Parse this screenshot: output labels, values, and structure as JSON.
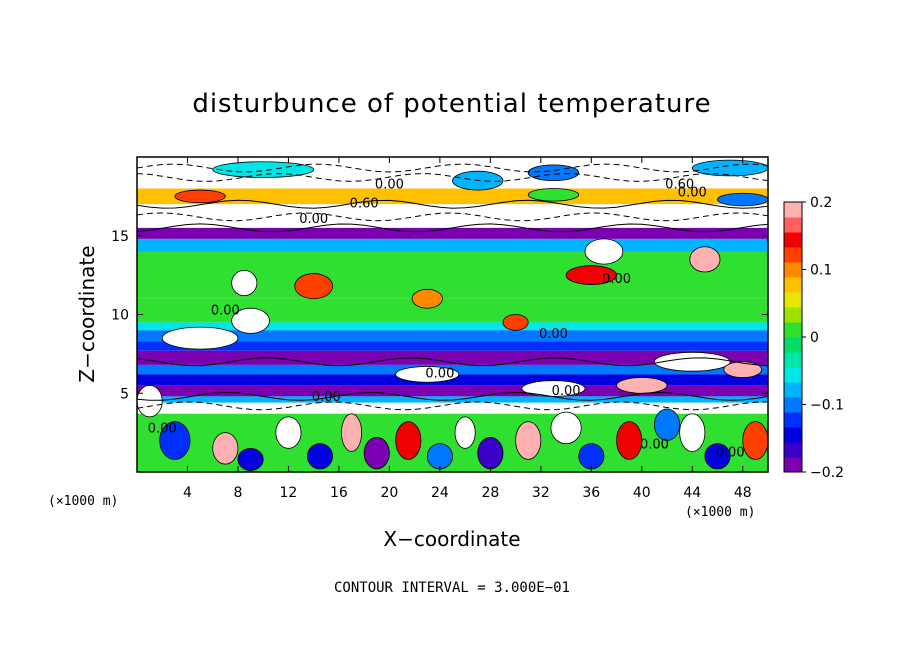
{
  "chart_data": {
    "type": "heatmap",
    "title": "disturbunce of potential temperature",
    "xlabel": "X−coordinate",
    "ylabel": "Z−coordinate",
    "x_unit": "(×1000 m)",
    "y_unit": "(×1000 m)",
    "xlim": [
      0,
      50
    ],
    "ylim": [
      0,
      20
    ],
    "x_ticks": [
      "4",
      "8",
      "12",
      "16",
      "20",
      "24",
      "28",
      "32",
      "36",
      "40",
      "44",
      "48"
    ],
    "x_tick_values": [
      4,
      8,
      12,
      16,
      20,
      24,
      28,
      32,
      36,
      40,
      44,
      48
    ],
    "y_ticks": [
      "5",
      "10",
      "15"
    ],
    "y_tick_values": [
      5,
      10,
      15
    ],
    "colorbar": {
      "ticks": [
        "0.2",
        "0.1",
        "0",
        "−0.1",
        "−0.2"
      ],
      "tick_values": [
        0.2,
        0.1,
        0,
        -0.1,
        -0.2
      ],
      "range": [
        -0.2,
        0.2
      ],
      "colors": [
        "#7a00b0",
        "#3a00c8",
        "#0000e0",
        "#0030ff",
        "#0078ff",
        "#00b4ff",
        "#00e6e6",
        "#00e6aa",
        "#00dc64",
        "#30e030",
        "#9ee000",
        "#e6e600",
        "#ffc000",
        "#ff8a00",
        "#ff4000",
        "#f00000",
        "#ff6060",
        "#ffb0b0"
      ]
    },
    "contour_interval": "CONTOUR INTERVAL = 3.000E−01",
    "contour_labels": [
      {
        "text": "0.00",
        "x": 20,
        "y": 18.0
      },
      {
        "text": "0.60",
        "x": 18,
        "y": 16.8
      },
      {
        "text": "0.00",
        "x": 14,
        "y": 15.8
      },
      {
        "text": "0.60",
        "x": 43,
        "y": 18.0
      },
      {
        "text": "0.00",
        "x": 44,
        "y": 17.5
      },
      {
        "text": "0.00",
        "x": 38,
        "y": 12.0
      },
      {
        "text": "0.00",
        "x": 7,
        "y": 10.0
      },
      {
        "text": "0.00",
        "x": 33,
        "y": 8.5
      },
      {
        "text": "0.00",
        "x": 24,
        "y": 6.0
      },
      {
        "text": "0.00",
        "x": 15,
        "y": 4.5
      },
      {
        "text": "0.00",
        "x": 34,
        "y": 4.9
      },
      {
        "text": "0.00",
        "x": 2,
        "y": 2.5
      },
      {
        "text": "0.00",
        "x": 41,
        "y": 1.5
      },
      {
        "text": "0.00",
        "x": 47,
        "y": 1.0
      }
    ],
    "bands": [
      {
        "z0": 18.0,
        "z1": 20.0,
        "value": 0.25
      },
      {
        "z0": 17.0,
        "z1": 18.0,
        "value": 0.08
      },
      {
        "z0": 15.5,
        "z1": 17.0,
        "value": 0.24
      },
      {
        "z0": 14.8,
        "z1": 15.5,
        "value": -0.2
      },
      {
        "z0": 14.0,
        "z1": 14.8,
        "value": -0.07
      },
      {
        "z0": 11.0,
        "z1": 14.0,
        "value": 0.02
      },
      {
        "z0": 9.5,
        "z1": 11.0,
        "value": 0.0
      },
      {
        "z0": 9.0,
        "z1": 9.5,
        "value": -0.06
      },
      {
        "z0": 8.3,
        "z1": 9.0,
        "value": -0.09
      },
      {
        "z0": 7.7,
        "z1": 8.3,
        "value": -0.13
      },
      {
        "z0": 6.8,
        "z1": 7.7,
        "value": -0.18
      },
      {
        "z0": 6.2,
        "z1": 6.8,
        "value": -0.11
      },
      {
        "z0": 5.5,
        "z1": 6.2,
        "value": -0.14
      },
      {
        "z0": 4.8,
        "z1": 5.5,
        "value": -0.2
      },
      {
        "z0": 4.4,
        "z1": 4.8,
        "value": -0.08
      },
      {
        "z0": 3.7,
        "z1": 4.4,
        "value": 0.25
      },
      {
        "z0": 0.0,
        "z1": 3.7,
        "value": 0.0
      }
    ],
    "blobs": [
      {
        "x": 10,
        "z": 19.2,
        "rx": 4,
        "rz": 0.5,
        "value": -0.05
      },
      {
        "x": 27,
        "z": 18.5,
        "rx": 2,
        "rz": 0.6,
        "value": -0.08
      },
      {
        "x": 33,
        "z": 19.0,
        "rx": 2,
        "rz": 0.5,
        "value": -0.1
      },
      {
        "x": 47,
        "z": 19.3,
        "rx": 3,
        "rz": 0.5,
        "value": -0.07
      },
      {
        "x": 5,
        "z": 17.5,
        "rx": 2,
        "rz": 0.4,
        "value": 0.12
      },
      {
        "x": 33,
        "z": 17.6,
        "rx": 2,
        "rz": 0.4,
        "value": 0.02
      },
      {
        "x": 48,
        "z": 17.3,
        "rx": 2,
        "rz": 0.4,
        "value": -0.1
      },
      {
        "x": 37,
        "z": 14.0,
        "rx": 1.5,
        "rz": 0.8,
        "value": 0.25
      },
      {
        "x": 45,
        "z": 13.5,
        "rx": 1.2,
        "rz": 0.8,
        "value": 0.2
      },
      {
        "x": 36,
        "z": 12.5,
        "rx": 2.0,
        "rz": 0.6,
        "value": 0.15
      },
      {
        "x": 14,
        "z": 11.8,
        "rx": 1.5,
        "rz": 0.8,
        "value": 0.12
      },
      {
        "x": 23,
        "z": 11.0,
        "rx": 1.2,
        "rz": 0.6,
        "value": 0.1
      },
      {
        "x": 8.5,
        "z": 12.0,
        "rx": 1.0,
        "rz": 0.8,
        "value": 0.25
      },
      {
        "x": 5,
        "z": 8.5,
        "rx": 3,
        "rz": 0.7,
        "value": 0.25
      },
      {
        "x": 9,
        "z": 9.6,
        "rx": 1.5,
        "rz": 0.8,
        "value": 0.25
      },
      {
        "x": 30,
        "z": 9.5,
        "rx": 1.0,
        "rz": 0.5,
        "value": 0.12
      },
      {
        "x": 23,
        "z": 6.2,
        "rx": 2.5,
        "rz": 0.5,
        "value": 0.25
      },
      {
        "x": 44,
        "z": 7.0,
        "rx": 3.0,
        "rz": 0.6,
        "value": 0.25
      },
      {
        "x": 48,
        "z": 6.5,
        "rx": 1.5,
        "rz": 0.5,
        "value": 0.2
      },
      {
        "x": 33,
        "z": 5.3,
        "rx": 2.5,
        "rz": 0.5,
        "value": 0.25
      },
      {
        "x": 40,
        "z": 5.5,
        "rx": 2.0,
        "rz": 0.5,
        "value": 0.18
      },
      {
        "x": 1,
        "z": 4.5,
        "rx": 1.0,
        "rz": 1.0,
        "value": 0.22
      },
      {
        "x": 3,
        "z": 2.0,
        "rx": 1.2,
        "rz": 1.2,
        "value": -0.12
      },
      {
        "x": 7,
        "z": 1.5,
        "rx": 1.0,
        "rz": 1.0,
        "value": 0.2
      },
      {
        "x": 9,
        "z": 0.8,
        "rx": 1.0,
        "rz": 0.7,
        "value": -0.15
      },
      {
        "x": 12,
        "z": 2.5,
        "rx": 1.0,
        "rz": 1.0,
        "value": 0.25
      },
      {
        "x": 14.5,
        "z": 1.0,
        "rx": 1.0,
        "rz": 0.8,
        "value": -0.14
      },
      {
        "x": 17,
        "z": 2.5,
        "rx": 0.8,
        "rz": 1.2,
        "value": 0.18
      },
      {
        "x": 19,
        "z": 1.2,
        "rx": 1.0,
        "rz": 1.0,
        "value": -0.18
      },
      {
        "x": 21.5,
        "z": 2.0,
        "rx": 1.0,
        "rz": 1.2,
        "value": 0.15
      },
      {
        "x": 24,
        "z": 1.0,
        "rx": 1.0,
        "rz": 0.8,
        "value": -0.1
      },
      {
        "x": 26,
        "z": 2.5,
        "rx": 0.8,
        "rz": 1.0,
        "value": 0.25
      },
      {
        "x": 28,
        "z": 1.2,
        "rx": 1.0,
        "rz": 1.0,
        "value": -0.16
      },
      {
        "x": 31,
        "z": 2.0,
        "rx": 1.0,
        "rz": 1.2,
        "value": 0.2
      },
      {
        "x": 34,
        "z": 2.8,
        "rx": 1.2,
        "rz": 1.0,
        "value": 0.25
      },
      {
        "x": 36,
        "z": 1.0,
        "rx": 1.0,
        "rz": 0.8,
        "value": -0.12
      },
      {
        "x": 39,
        "z": 2.0,
        "rx": 1.0,
        "rz": 1.2,
        "value": 0.15
      },
      {
        "x": 42,
        "z": 3.0,
        "rx": 1.0,
        "rz": 1.0,
        "value": -0.1
      },
      {
        "x": 44,
        "z": 2.5,
        "rx": 1.0,
        "rz": 1.2,
        "value": 0.25
      },
      {
        "x": 46,
        "z": 1.0,
        "rx": 1.0,
        "rz": 0.8,
        "value": -0.15
      },
      {
        "x": 49,
        "z": 2.0,
        "rx": 1.0,
        "rz": 1.2,
        "value": 0.12
      }
    ]
  }
}
